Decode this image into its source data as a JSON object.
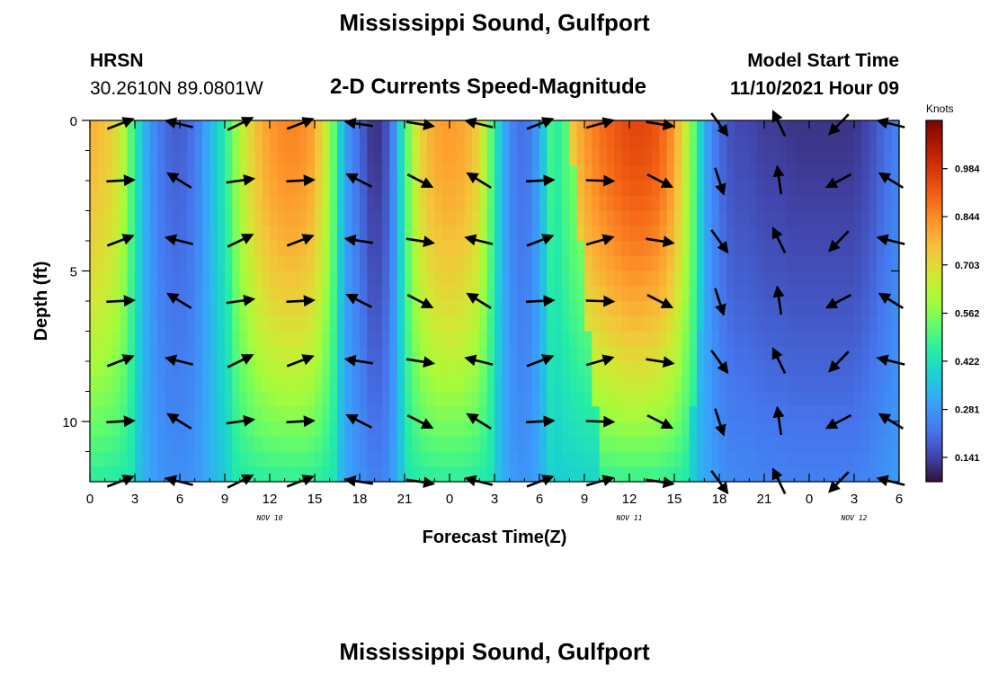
{
  "header": {
    "title": "Mississippi Sound, Gulfport",
    "station_code": "HRSN",
    "station_coords": "30.2610N  89.0801W",
    "subtitle": "2-D Currents Speed-Magnitude",
    "model_start_label": "Model Start Time",
    "model_start_value": "11/10/2021 Hour 09"
  },
  "footer": {
    "title": "Mississippi Sound, Gulfport"
  },
  "chart_data": {
    "type": "heatmap",
    "title": "2-D Currents Speed-Magnitude",
    "xlabel": "Forecast Time(Z)",
    "ylabel": "Depth (ft)",
    "x_tick_labels": [
      "0",
      "3",
      "6",
      "9",
      "12",
      "15",
      "18",
      "21",
      "0",
      "3",
      "6",
      "9",
      "12",
      "15",
      "18",
      "21",
      "0",
      "3",
      "6"
    ],
    "x_range_hours": [
      0,
      54
    ],
    "y_ticks": [
      0,
      5,
      10
    ],
    "y_range": [
      0,
      12
    ],
    "y_inverted": true,
    "date_labels": [
      {
        "text": "NOV 10",
        "hour": 12
      },
      {
        "text": "NOV 11",
        "hour": 36
      },
      {
        "text": "NOV 12",
        "hour": 51
      }
    ],
    "colorbar": {
      "unit": "Knots",
      "ticks": [
        0.141,
        0.281,
        0.422,
        0.562,
        0.703,
        0.844,
        0.984
      ],
      "tick_labels": [
        "0.141",
        "0.281",
        "0.422",
        "0.562",
        "0.703",
        "0.844",
        "0.984"
      ],
      "range": [
        0.07,
        1.125
      ]
    },
    "speed_profile_surface": [
      [
        0,
        0.78
      ],
      [
        1,
        0.75
      ],
      [
        2,
        0.68
      ],
      [
        3,
        0.45
      ],
      [
        4,
        0.28
      ],
      [
        5,
        0.2
      ],
      [
        6,
        0.18
      ],
      [
        7,
        0.22
      ],
      [
        8,
        0.33
      ],
      [
        9,
        0.45
      ],
      [
        10,
        0.62
      ],
      [
        11,
        0.75
      ],
      [
        12,
        0.82
      ],
      [
        13,
        0.85
      ],
      [
        14,
        0.85
      ],
      [
        15,
        0.8
      ],
      [
        16,
        0.6
      ],
      [
        17,
        0.3
      ],
      [
        18,
        0.2
      ],
      [
        19,
        0.1
      ],
      [
        20,
        0.18
      ],
      [
        21,
        0.48
      ],
      [
        22,
        0.72
      ],
      [
        23,
        0.8
      ],
      [
        24,
        0.82
      ],
      [
        25,
        0.8
      ],
      [
        26,
        0.72
      ],
      [
        27,
        0.45
      ],
      [
        28,
        0.25
      ],
      [
        29,
        0.2
      ],
      [
        30,
        0.3
      ],
      [
        31,
        0.55
      ],
      [
        32,
        0.72
      ],
      [
        33,
        0.82
      ],
      [
        34,
        0.88
      ],
      [
        35,
        0.92
      ],
      [
        36,
        0.95
      ],
      [
        37,
        0.95
      ],
      [
        38,
        0.92
      ],
      [
        39,
        0.82
      ],
      [
        40,
        0.6
      ],
      [
        41,
        0.32
      ],
      [
        42,
        0.2
      ],
      [
        43,
        0.15
      ],
      [
        44,
        0.15
      ],
      [
        45,
        0.13
      ],
      [
        46,
        0.13
      ],
      [
        47,
        0.12
      ],
      [
        48,
        0.12
      ],
      [
        49,
        0.12
      ],
      [
        50,
        0.12
      ],
      [
        51,
        0.12
      ],
      [
        52,
        0.15
      ],
      [
        53,
        0.2
      ],
      [
        54,
        0.25
      ]
    ],
    "vector_rows_depth_ft": [
      0,
      2,
      4,
      6,
      8,
      10,
      12
    ],
    "vector_columns_hours": [
      2,
      6,
      10,
      14,
      18,
      22,
      26,
      30,
      34,
      38,
      42,
      46,
      50,
      54
    ],
    "vector_note": "current direction arrows"
  }
}
